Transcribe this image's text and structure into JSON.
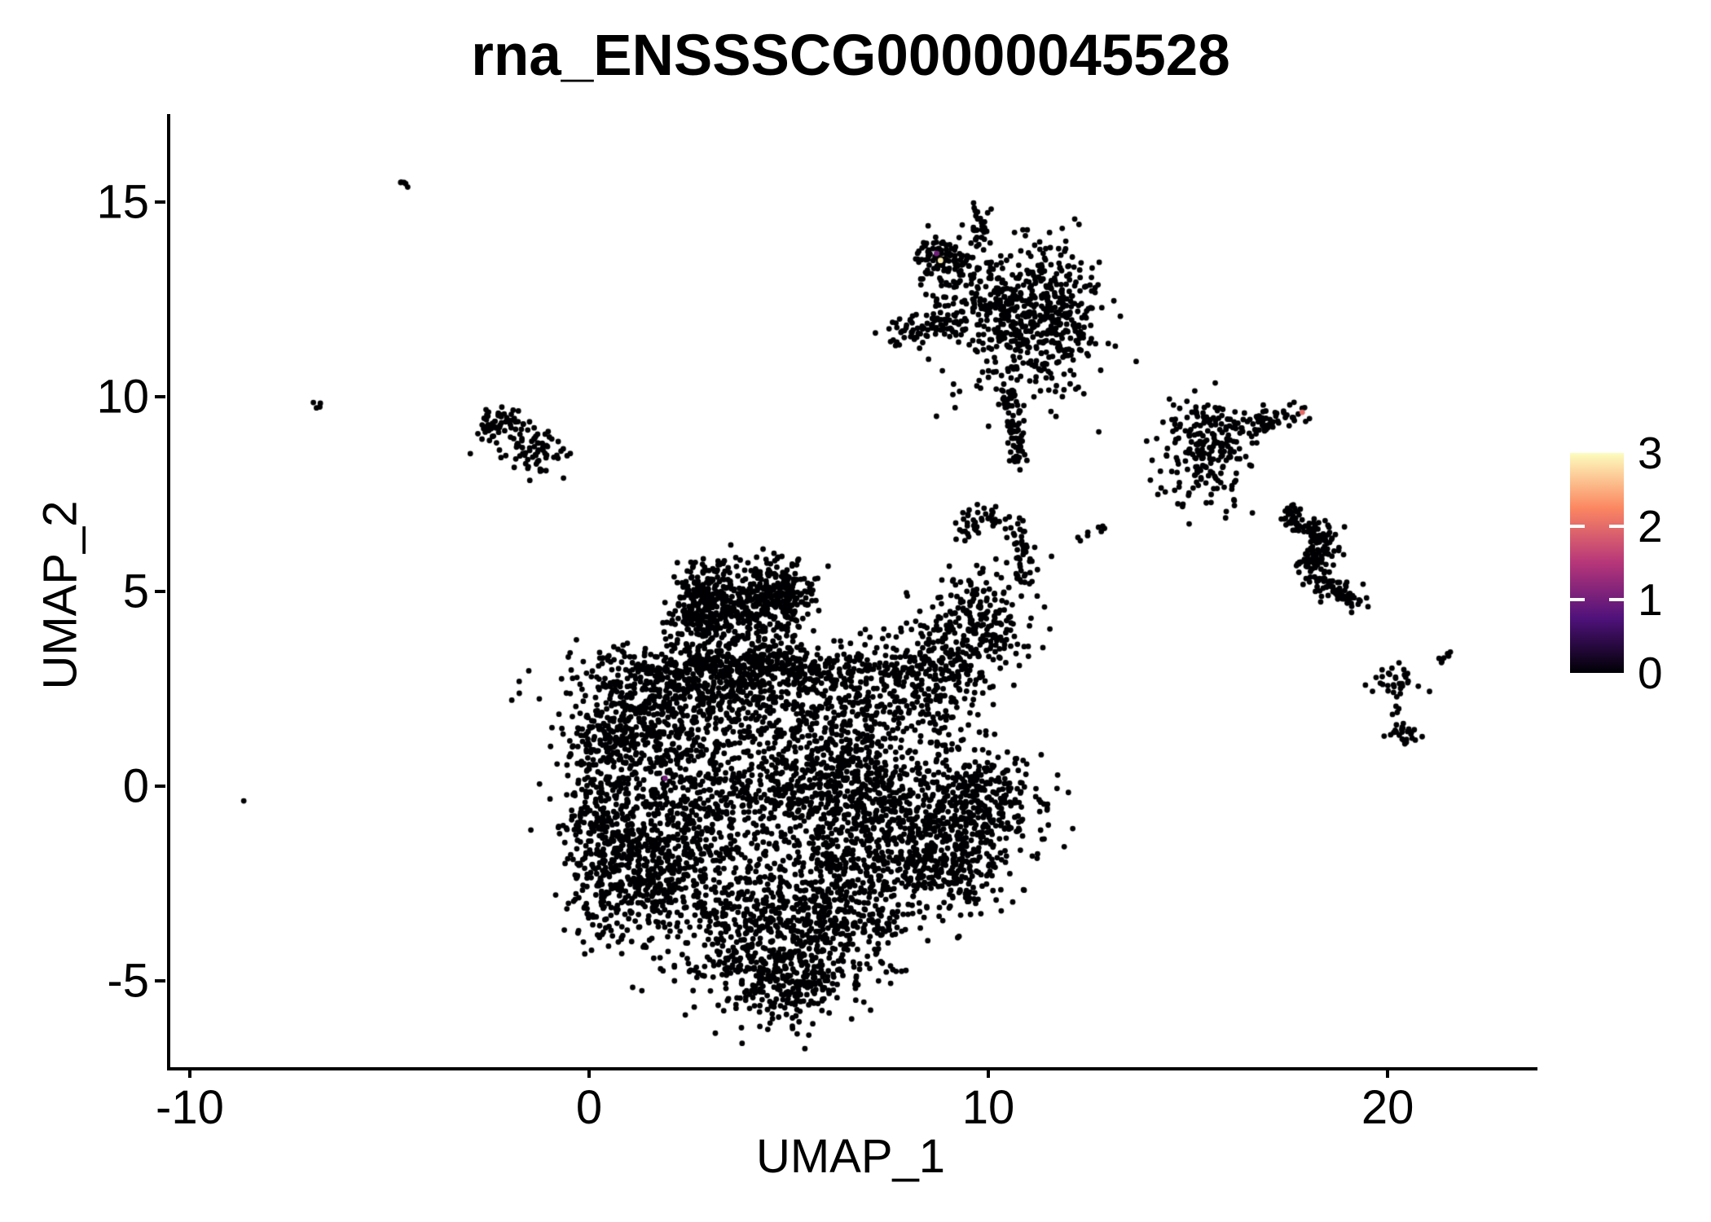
{
  "chart_data": {
    "type": "scatter",
    "title": "rna_ENSSSCG00000045528",
    "xlabel": "UMAP_1",
    "ylabel": "UMAP_2",
    "xlim": [
      -10.57,
      23.67
    ],
    "ylim": [
      -7.22,
      17.26
    ],
    "x_ticks": [
      -10,
      0,
      10,
      20
    ],
    "y_ticks": [
      -5,
      0,
      5,
      10,
      15
    ],
    "grid": false,
    "point_radius_px": 3.4,
    "default_point_color": "#000004",
    "axis_color": "#000000",
    "colorbar": {
      "min": 0,
      "max": 3,
      "ticks": [
        0,
        1,
        2,
        3
      ],
      "colormap": "magma",
      "stops": [
        [
          0.0,
          "#000004"
        ],
        [
          0.25,
          "#50127b"
        ],
        [
          0.5,
          "#b63679"
        ],
        [
          0.75,
          "#fb8761"
        ],
        [
          1.0,
          "#fcfdbf"
        ]
      ],
      "tick_dash_color": "#ffffff"
    },
    "clusters": [
      {
        "name": "main-crown-left",
        "kind": "gauss",
        "n": 300,
        "cx": 2.9,
        "cy": 4.75,
        "sx": 0.5,
        "sy": 0.5
      },
      {
        "name": "main-crown-right",
        "kind": "gauss",
        "n": 260,
        "cx": 4.55,
        "cy": 4.95,
        "sx": 0.5,
        "sy": 0.42
      },
      {
        "name": "main-crown-fill",
        "kind": "gauss",
        "n": 140,
        "cx": 3.75,
        "cy": 4.1,
        "sx": 0.8,
        "sy": 0.5
      },
      {
        "name": "main-band-upper",
        "kind": "gauss",
        "n": 560,
        "cx": 3.9,
        "cy": 3.05,
        "sx": 1.85,
        "sy": 0.32
      },
      {
        "name": "main-band-lower",
        "kind": "gauss",
        "n": 300,
        "cx": 3.4,
        "cy": 2.35,
        "sx": 1.9,
        "sy": 0.4
      },
      {
        "name": "main-left-rim",
        "kind": "gauss",
        "n": 480,
        "cx": 0.35,
        "cy": -0.7,
        "sx": 0.55,
        "sy": 1.5
      },
      {
        "name": "main-left-lobe-top",
        "kind": "gauss",
        "n": 300,
        "cx": 1.3,
        "cy": 1.5,
        "sx": 0.95,
        "sy": 0.75
      },
      {
        "name": "main-left-lobe-core",
        "kind": "gauss",
        "n": 250,
        "cx": 2.2,
        "cy": -0.8,
        "sx": 0.8,
        "sy": 0.9
      },
      {
        "name": "main-left-bottom",
        "kind": "gauss",
        "n": 340,
        "cx": 1.5,
        "cy": -2.3,
        "sx": 0.9,
        "sy": 0.75
      },
      {
        "name": "main-center-sparse",
        "kind": "gauss",
        "n": 220,
        "cx": 3.3,
        "cy": 1.2,
        "sx": 1.1,
        "sy": 1.0
      },
      {
        "name": "main-center",
        "kind": "gauss",
        "n": 420,
        "cx": 4.9,
        "cy": -0.6,
        "sx": 1.25,
        "sy": 1.15
      },
      {
        "name": "main-center-right",
        "kind": "gauss",
        "n": 420,
        "cx": 6.3,
        "cy": 0.7,
        "sx": 0.95,
        "sy": 1.1
      },
      {
        "name": "main-right-mid",
        "kind": "gauss",
        "n": 370,
        "cx": 7.3,
        "cy": -1.0,
        "sx": 0.9,
        "sy": 1.0
      },
      {
        "name": "main-right-lobe",
        "kind": "gauss",
        "n": 420,
        "cx": 9.55,
        "cy": -0.4,
        "sx": 0.85,
        "sy": 0.9
      },
      {
        "name": "main-right-low",
        "kind": "gauss",
        "n": 240,
        "cx": 8.9,
        "cy": -2.0,
        "sx": 0.8,
        "sy": 0.65
      },
      {
        "name": "main-bottom-mass",
        "kind": "gauss",
        "n": 440,
        "cx": 4.4,
        "cy": -3.7,
        "sx": 1.25,
        "sy": 0.85
      },
      {
        "name": "main-bottom-right",
        "kind": "gauss",
        "n": 300,
        "cx": 6.2,
        "cy": -3.2,
        "sx": 0.9,
        "sy": 0.8
      },
      {
        "name": "main-bottom-tongue",
        "kind": "gauss",
        "n": 260,
        "cx": 4.8,
        "cy": -5.0,
        "sx": 0.8,
        "sy": 0.55
      },
      {
        "name": "main-ne-arm-low",
        "kind": "gauss",
        "n": 280,
        "cx": 8.3,
        "cy": 2.8,
        "sx": 0.75,
        "sy": 0.7
      },
      {
        "name": "main-ne-arm-mid",
        "kind": "gauss",
        "n": 200,
        "cx": 9.7,
        "cy": 4.2,
        "sx": 0.65,
        "sy": 0.6
      },
      {
        "name": "main-ne-hook",
        "kind": "path",
        "n": 90,
        "jitter": 0.16,
        "pts": [
          [
            9.2,
            6.35
          ],
          [
            9.5,
            6.9
          ],
          [
            10.05,
            6.95
          ],
          [
            10.6,
            6.6
          ],
          [
            10.85,
            5.9
          ],
          [
            10.9,
            5.2
          ]
        ]
      },
      {
        "name": "top-cluster-tail",
        "kind": "path",
        "n": 80,
        "jitter": 0.14,
        "pts": [
          [
            10.4,
            10.45
          ],
          [
            10.55,
            9.4
          ],
          [
            10.7,
            8.25
          ]
        ]
      },
      {
        "name": "top-cluster-nw-knob",
        "kind": "gauss",
        "n": 95,
        "cx": 8.78,
        "cy": 13.55,
        "sx": 0.38,
        "sy": 0.3
      },
      {
        "name": "top-cluster-top-knob",
        "kind": "gauss",
        "n": 30,
        "cx": 9.75,
        "cy": 14.35,
        "sx": 0.13,
        "sy": 0.34
      },
      {
        "name": "top-cluster-main",
        "kind": "gauss",
        "n": 470,
        "cx": 10.8,
        "cy": 11.9,
        "sx": 1.0,
        "sy": 0.92
      },
      {
        "name": "top-cluster-right",
        "kind": "gauss",
        "n": 150,
        "cx": 11.55,
        "cy": 12.4,
        "sx": 0.5,
        "sy": 0.75
      },
      {
        "name": "top-cluster-left-arm",
        "kind": "path",
        "n": 70,
        "jitter": 0.2,
        "pts": [
          [
            7.5,
            11.5
          ],
          [
            8.3,
            11.75
          ],
          [
            9.05,
            11.9
          ]
        ]
      },
      {
        "name": "top-cluster-bridge",
        "kind": "gauss",
        "n": 60,
        "cx": 9.6,
        "cy": 12.9,
        "sx": 0.5,
        "sy": 0.42
      },
      {
        "name": "nw-cluster-arm",
        "kind": "path",
        "n": 55,
        "jitter": 0.22,
        "pts": [
          [
            -2.75,
            9.0
          ],
          [
            -2.3,
            9.3
          ],
          [
            -1.9,
            9.5
          ]
        ]
      },
      {
        "name": "nw-cluster-blob",
        "kind": "gauss",
        "n": 75,
        "cx": -1.45,
        "cy": 8.6,
        "sx": 0.45,
        "sy": 0.33
      },
      {
        "name": "right-cluster-blob",
        "kind": "gauss",
        "n": 170,
        "cx": 15.35,
        "cy": 8.8,
        "sx": 0.55,
        "sy": 0.6
      },
      {
        "name": "right-cluster-arm",
        "kind": "path",
        "n": 70,
        "jitter": 0.17,
        "pts": [
          [
            16.0,
            9.1
          ],
          [
            16.9,
            9.4
          ],
          [
            17.7,
            9.58
          ]
        ]
      },
      {
        "name": "right-cluster-fringe",
        "kind": "gauss",
        "n": 40,
        "cx": 15.3,
        "cy": 7.7,
        "sx": 0.6,
        "sy": 0.5
      },
      {
        "name": "right-s-cluster",
        "kind": "path",
        "n": 210,
        "jitter": 0.17,
        "pts": [
          [
            17.4,
            7.05
          ],
          [
            18.1,
            6.6
          ],
          [
            18.45,
            6.25
          ],
          [
            17.85,
            5.75
          ],
          [
            18.2,
            5.2
          ],
          [
            18.85,
            4.9
          ],
          [
            19.15,
            4.6
          ]
        ]
      },
      {
        "name": "se-cluster-arm",
        "kind": "gauss",
        "n": 30,
        "cx": 20.1,
        "cy": 2.75,
        "sx": 0.33,
        "sy": 0.22
      },
      {
        "name": "se-cluster-trail",
        "kind": "path",
        "n": 6,
        "jitter": 0.06,
        "pts": [
          [
            20.1,
            2.35
          ],
          [
            20.2,
            1.9
          ]
        ]
      },
      {
        "name": "se-cluster-knot",
        "kind": "gauss",
        "n": 26,
        "cx": 20.3,
        "cy": 1.35,
        "sx": 0.2,
        "sy": 0.2
      },
      {
        "name": "se-dash",
        "kind": "path",
        "n": 7,
        "jitter": 0.04,
        "pts": [
          [
            21.15,
            3.15
          ],
          [
            21.5,
            3.45
          ]
        ]
      },
      {
        "name": "bridge-chain",
        "kind": "path",
        "n": 8,
        "jitter": 0.07,
        "pts": [
          [
            12.15,
            6.3
          ],
          [
            12.8,
            6.62
          ]
        ]
      },
      {
        "name": "bridge-dot",
        "kind": "gauss",
        "n": 1,
        "cx": 11.5,
        "cy": 5.9,
        "sx": 0,
        "sy": 0
      },
      {
        "name": "nw-speck-dash",
        "kind": "path",
        "n": 5,
        "jitter": 0.04,
        "pts": [
          [
            -4.85,
            15.6
          ],
          [
            -4.55,
            15.35
          ]
        ]
      },
      {
        "name": "w-speck-dash",
        "kind": "path",
        "n": 4,
        "jitter": 0.05,
        "pts": [
          [
            -7.0,
            9.9
          ],
          [
            -6.75,
            9.68
          ]
        ]
      },
      {
        "name": "sw-lone-dot",
        "kind": "gauss",
        "n": 1,
        "cx": -8.73,
        "cy": -0.38,
        "sx": 0,
        "sy": 0
      }
    ],
    "highlighted_points": [
      {
        "x": 8.62,
        "y": 13.68,
        "value": 1.0
      },
      {
        "x": 8.72,
        "y": 13.5,
        "value": 2.9
      },
      {
        "x": 17.78,
        "y": 9.6,
        "value": 2.0
      },
      {
        "x": 1.82,
        "y": 0.2,
        "value": 1.0
      }
    ]
  }
}
